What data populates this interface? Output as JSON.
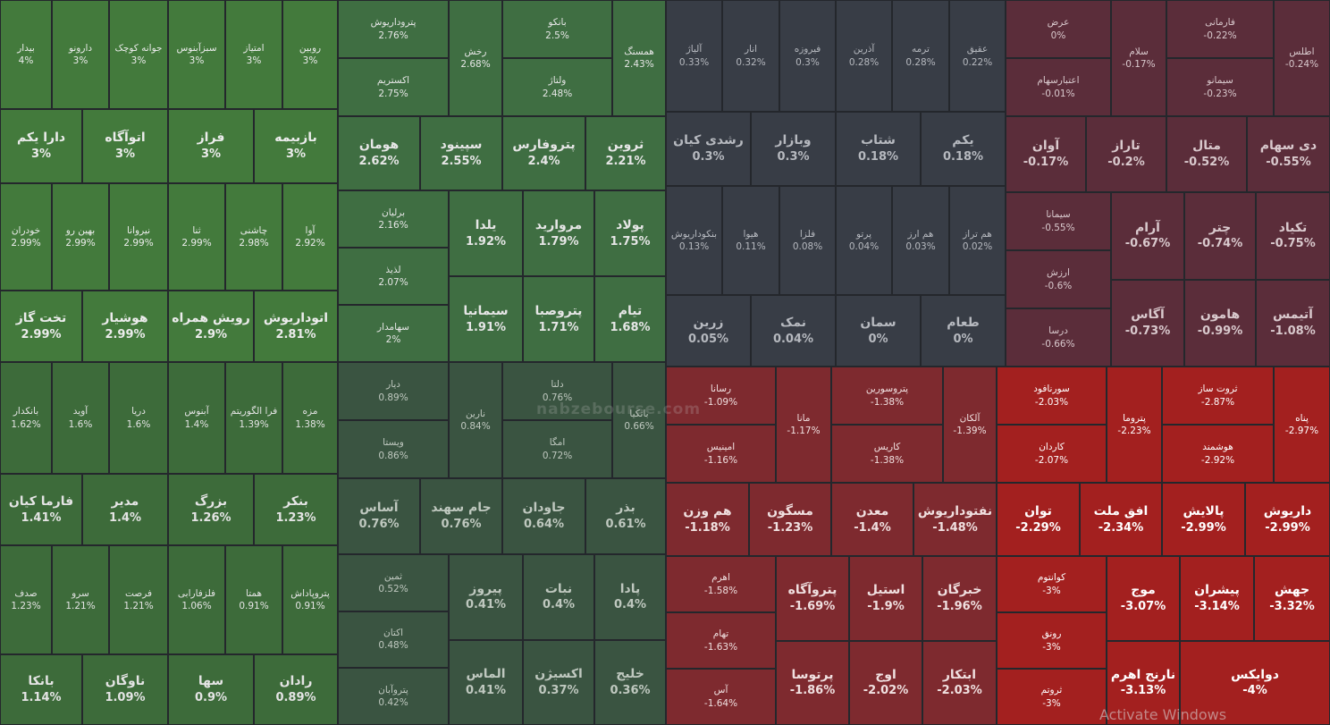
{
  "groups": [
    {
      "color": "#437a3c",
      "text_color": "#ececec",
      "tiles": [
        {
          "name": "بیدار",
          "change": "4%"
        },
        {
          "name": "دارونو",
          "change": "3%"
        },
        {
          "name": "جوانه کوچک",
          "change": "3%"
        },
        {
          "name": "سبزآبنوس",
          "change": "3%"
        },
        {
          "name": "امتیاز",
          "change": "3%"
        },
        {
          "name": "روبین",
          "change": "3%"
        },
        {
          "name": "دارا یکم",
          "change": "3%"
        },
        {
          "name": "اتوآگاه",
          "change": "3%"
        },
        {
          "name": "فراز",
          "change": "3%"
        },
        {
          "name": "بازبیمه",
          "change": "3%"
        },
        {
          "name": "خودران",
          "change": "2.99%"
        },
        {
          "name": "بهین رو",
          "change": "2.99%"
        },
        {
          "name": "نیروانا",
          "change": "2.99%"
        },
        {
          "name": "ثنا",
          "change": "2.99%"
        },
        {
          "name": "چاشنی",
          "change": "2.98%"
        },
        {
          "name": "آوا",
          "change": "2.92%"
        },
        {
          "name": "تخت گاز",
          "change": "2.99%"
        },
        {
          "name": "هوشیار",
          "change": "2.99%"
        },
        {
          "name": "رویش همراه",
          "change": "2.9%"
        },
        {
          "name": "اتوداریوش",
          "change": "2.81%"
        }
      ]
    },
    {
      "color": "#3d6b3a",
      "text_color": "#e4e4e4",
      "tiles": [
        {
          "name": "بانکدار",
          "change": "1.62%"
        },
        {
          "name": "آوید",
          "change": "1.6%"
        },
        {
          "name": "دریا",
          "change": "1.6%"
        },
        {
          "name": "آبنوس",
          "change": "1.4%"
        },
        {
          "name": "فرا الگوریتم",
          "change": "1.39%"
        },
        {
          "name": "مزه",
          "change": "1.38%"
        },
        {
          "name": "فارما کیان",
          "change": "1.41%"
        },
        {
          "name": "مدیر",
          "change": "1.4%"
        },
        {
          "name": "بزرگ",
          "change": "1.26%"
        },
        {
          "name": "بنکر",
          "change": "1.23%"
        },
        {
          "name": "صدف",
          "change": "1.23%"
        },
        {
          "name": "سرو",
          "change": "1.21%"
        },
        {
          "name": "فرصت",
          "change": "1.21%"
        },
        {
          "name": "فلزفارابی",
          "change": "1.06%"
        },
        {
          "name": "همتا",
          "change": "0.91%"
        },
        {
          "name": "پتروپاداش",
          "change": "0.91%"
        },
        {
          "name": "بانکا",
          "change": "1.14%"
        },
        {
          "name": "ناوگان",
          "change": "1.09%"
        },
        {
          "name": "سها",
          "change": "0.9%"
        },
        {
          "name": "رادان",
          "change": "0.89%"
        }
      ]
    },
    {
      "color": "#3f6e42",
      "text_color": "#e6e6e6",
      "tiles": [
        {
          "name": "پتروداریوش",
          "change": "2.76%"
        },
        {
          "name": "اکستریم",
          "change": "2.75%"
        },
        {
          "name": "رخش",
          "change": "2.68%"
        },
        {
          "name": "بانکو",
          "change": "2.5%"
        },
        {
          "name": "ولتاژ",
          "change": "2.48%"
        },
        {
          "name": "همسنگ",
          "change": "2.43%"
        },
        {
          "name": "هومان",
          "change": "2.62%"
        },
        {
          "name": "سپینود",
          "change": "2.55%"
        },
        {
          "name": "پتروفارس",
          "change": "2.4%"
        },
        {
          "name": "ثروین",
          "change": "2.21%"
        },
        {
          "name": "برلیان",
          "change": "2.16%"
        },
        {
          "name": "لذیذ",
          "change": "2.07%"
        },
        {
          "name": "سهامدار",
          "change": "2%"
        },
        {
          "name": "یلدا",
          "change": "1.92%"
        },
        {
          "name": "سیمانیا",
          "change": "1.91%"
        },
        {
          "name": "مروارید",
          "change": "1.79%"
        },
        {
          "name": "پتروصبا",
          "change": "1.71%"
        },
        {
          "name": "پولاد",
          "change": "1.75%"
        },
        {
          "name": "تیام",
          "change": "1.68%"
        }
      ]
    },
    {
      "color": "#3a5441",
      "text_color": "#bfc8bf",
      "tiles": [
        {
          "name": "دیار",
          "change": "0.89%"
        },
        {
          "name": "ویستا",
          "change": "0.86%"
        },
        {
          "name": "نارین",
          "change": "0.84%"
        },
        {
          "name": "دلتا",
          "change": "0.76%"
        },
        {
          "name": "امگا",
          "change": "0.72%"
        },
        {
          "name": "بانکیا",
          "change": "0.66%"
        },
        {
          "name": "آساس",
          "change": "0.76%"
        },
        {
          "name": "جام سهند",
          "change": "0.76%"
        },
        {
          "name": "جاودان",
          "change": "0.64%"
        },
        {
          "name": "بذر",
          "change": "0.61%"
        },
        {
          "name": "ثمین",
          "change": "0.52%"
        },
        {
          "name": "اکتان",
          "change": "0.48%"
        },
        {
          "name": "پتروآبان",
          "change": "0.42%"
        },
        {
          "name": "پیروز",
          "change": "0.41%"
        },
        {
          "name": "الماس",
          "change": "0.41%"
        },
        {
          "name": "نبات",
          "change": "0.4%"
        },
        {
          "name": "اکسیژن",
          "change": "0.37%"
        },
        {
          "name": "پادا",
          "change": "0.4%"
        },
        {
          "name": "خلیج",
          "change": "0.36%"
        }
      ]
    },
    {
      "color": "#383d46",
      "text_color": "#b6b9bf",
      "tiles": [
        {
          "name": "آلیاژ",
          "change": "0.33%"
        },
        {
          "name": "انار",
          "change": "0.32%"
        },
        {
          "name": "فیروزه",
          "change": "0.3%"
        },
        {
          "name": "آذرین",
          "change": "0.28%"
        },
        {
          "name": "ترمه",
          "change": "0.28%"
        },
        {
          "name": "عقیق",
          "change": "0.22%"
        },
        {
          "name": "رشدی کیان",
          "change": "0.3%"
        },
        {
          "name": "وبازار",
          "change": "0.3%"
        },
        {
          "name": "شتاب",
          "change": "0.18%"
        },
        {
          "name": "یکم",
          "change": "0.18%"
        },
        {
          "name": "بنکوداریوش",
          "change": "0.13%"
        },
        {
          "name": "هیوا",
          "change": "0.11%"
        },
        {
          "name": "فلزا",
          "change": "0.08%"
        },
        {
          "name": "پرتو",
          "change": "0.04%"
        },
        {
          "name": "هم ارز",
          "change": "0.03%"
        },
        {
          "name": "هم تراز",
          "change": "0.02%"
        },
        {
          "name": "زرین",
          "change": "0.05%"
        },
        {
          "name": "نمک",
          "change": "0.04%"
        },
        {
          "name": "سمان",
          "change": "0%"
        },
        {
          "name": "طعام",
          "change": "0%"
        }
      ]
    },
    {
      "color": "#5b2d3a",
      "text_color": "#d9c9cd",
      "tiles": [
        {
          "name": "عرض",
          "change": "0%"
        },
        {
          "name": "اعتبارسهام",
          "change": "-0.01%"
        },
        {
          "name": "سلام",
          "change": "-0.17%"
        },
        {
          "name": "فارمانی",
          "change": "-0.22%"
        },
        {
          "name": "سیمانو",
          "change": "-0.23%"
        },
        {
          "name": "اطلس",
          "change": "-0.24%"
        },
        {
          "name": "آوان",
          "change": "-0.17%"
        },
        {
          "name": "تاراز",
          "change": "-0.2%"
        },
        {
          "name": "متال",
          "change": "-0.52%"
        },
        {
          "name": "دی سهام",
          "change": "-0.55%"
        },
        {
          "name": "سیمانا",
          "change": "-0.55%"
        },
        {
          "name": "ارزش",
          "change": "-0.6%"
        },
        {
          "name": "درسا",
          "change": "-0.66%"
        },
        {
          "name": "آرام",
          "change": "-0.67%"
        },
        {
          "name": "آگاس",
          "change": "-0.73%"
        },
        {
          "name": "چتر",
          "change": "-0.74%"
        },
        {
          "name": "هامون",
          "change": "-0.99%"
        },
        {
          "name": "تکیاد",
          "change": "-0.75%"
        },
        {
          "name": "آتیمس",
          "change": "-1.08%"
        }
      ]
    },
    {
      "color": "#7e2a2f",
      "text_color": "#f0e0e0",
      "tiles": [
        {
          "name": "رسانا",
          "change": "-1.09%"
        },
        {
          "name": "امینیس",
          "change": "-1.16%"
        },
        {
          "name": "مانا",
          "change": "-1.17%"
        },
        {
          "name": "پتروسورین",
          "change": "-1.38%"
        },
        {
          "name": "کاریس",
          "change": "-1.38%"
        },
        {
          "name": "آلکان",
          "change": "-1.39%"
        },
        {
          "name": "هم وزن",
          "change": "-1.18%"
        },
        {
          "name": "مسگون",
          "change": "-1.23%"
        },
        {
          "name": "معدن",
          "change": "-1.4%"
        },
        {
          "name": "نفتوداریوش",
          "change": "-1.48%"
        },
        {
          "name": "اهرم",
          "change": "-1.58%"
        },
        {
          "name": "تهام",
          "change": "-1.63%"
        },
        {
          "name": "آس",
          "change": "-1.64%"
        },
        {
          "name": "پتروآگاه",
          "change": "-1.69%"
        },
        {
          "name": "پرتوسا",
          "change": "-1.86%"
        },
        {
          "name": "استیل",
          "change": "-1.9%"
        },
        {
          "name": "اوج",
          "change": "-2.02%"
        },
        {
          "name": "خبرگان",
          "change": "-1.96%"
        },
        {
          "name": "ابتکار",
          "change": "-2.03%"
        }
      ]
    },
    {
      "color": "#a3201f",
      "text_color": "#ffffff",
      "tiles": [
        {
          "name": "سورنافود",
          "change": "-2.03%"
        },
        {
          "name": "کاردان",
          "change": "-2.07%"
        },
        {
          "name": "پتروما",
          "change": "-2.23%"
        },
        {
          "name": "ثروت ساز",
          "change": "-2.87%"
        },
        {
          "name": "هوشمند",
          "change": "-2.92%"
        },
        {
          "name": "پناه",
          "change": "-2.97%"
        },
        {
          "name": "توان",
          "change": "-2.29%"
        },
        {
          "name": "افق ملت",
          "change": "-2.34%"
        },
        {
          "name": "پالایش",
          "change": "-2.99%"
        },
        {
          "name": "داریوش",
          "change": "-2.99%"
        },
        {
          "name": "کوانتوم",
          "change": "-3%"
        },
        {
          "name": "رونق",
          "change": "-3%"
        },
        {
          "name": "ثروتم",
          "change": "-3%"
        },
        {
          "name": "موج",
          "change": "-3.07%"
        },
        {
          "name": "نارنج اهرم",
          "change": "-3.13%"
        },
        {
          "name": "پیشران",
          "change": "-3.14%"
        },
        {
          "name": "دوایکس",
          "change": "-4%"
        },
        {
          "name": "جهش",
          "change": "-3.32%"
        }
      ]
    }
  ],
  "watermark": "nabzebourse.com",
  "os_notice": "Activate Windows"
}
